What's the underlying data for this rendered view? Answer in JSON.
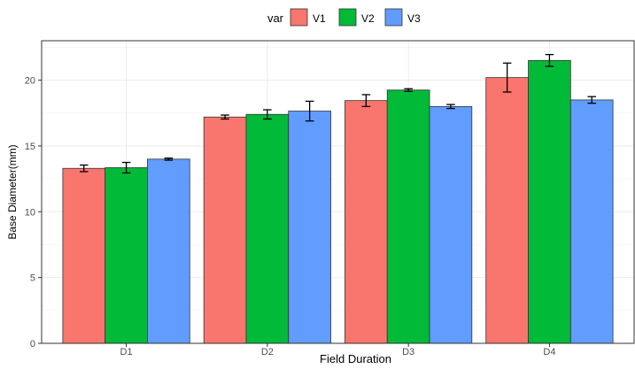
{
  "chart_data": {
    "type": "bar",
    "title": "",
    "xlabel": "Field Duration",
    "ylabel": "Base Diameter(mm)",
    "categories": [
      "D1",
      "D2",
      "D3",
      "D4"
    ],
    "ylim": [
      0,
      23
    ],
    "yticks": [
      0,
      5,
      10,
      15,
      20
    ],
    "grid": true,
    "legend": {
      "title": "var",
      "position": "top"
    },
    "series": [
      {
        "name": "V1",
        "color": "#F8766D",
        "values": [
          13.3,
          17.2,
          18.45,
          20.2
        ],
        "errors": [
          0.25,
          0.15,
          0.45,
          1.1
        ]
      },
      {
        "name": "V2",
        "color": "#00BA38",
        "values": [
          13.35,
          17.4,
          19.25,
          21.5
        ],
        "errors": [
          0.4,
          0.35,
          0.1,
          0.45
        ]
      },
      {
        "name": "V3",
        "color": "#619CFF",
        "values": [
          14.0,
          17.65,
          18.0,
          18.5
        ],
        "errors": [
          0.08,
          0.75,
          0.15,
          0.25
        ]
      }
    ]
  }
}
